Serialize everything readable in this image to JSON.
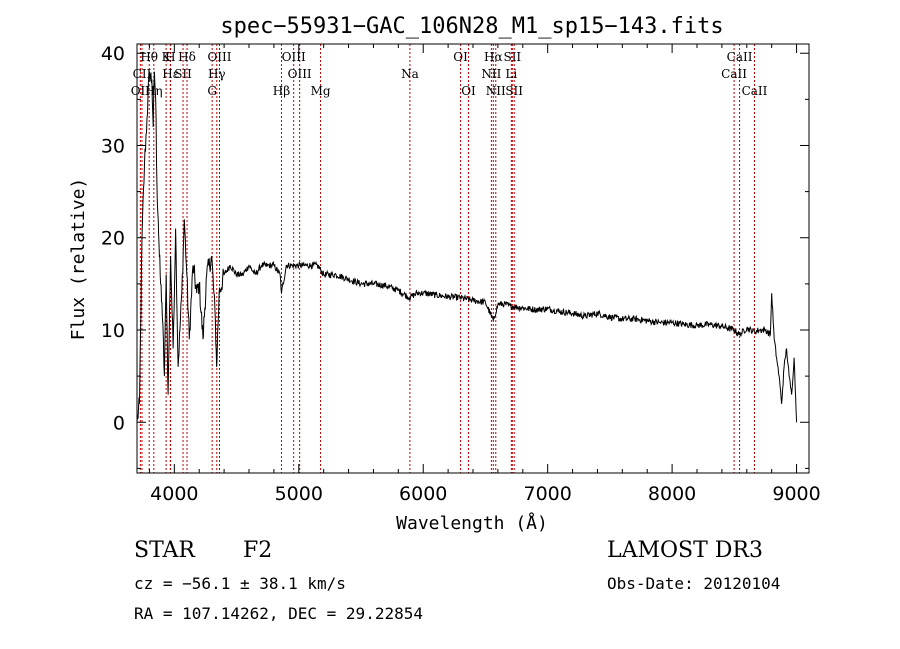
{
  "chart_data": {
    "type": "line",
    "title": "spec−55931−GAC_106N28_M1_sp15−143.fits",
    "xlabel": "Wavelength (Å)",
    "ylabel": "Flux (relative)",
    "xlim": [
      3700,
      9100
    ],
    "ylim": [
      -5.5,
      41
    ],
    "xticks": [
      4000,
      5000,
      6000,
      7000,
      8000,
      9000
    ],
    "xtick_labels": [
      "4000",
      "5000",
      "6000",
      "7000",
      "8000",
      "9000"
    ],
    "yticks": [
      0,
      10,
      20,
      30,
      40
    ],
    "ytick_labels": [
      "0",
      "10",
      "20",
      "30",
      "40"
    ],
    "grid": false,
    "series": [
      {
        "name": "flux",
        "x": [
          3700,
          3720,
          3740,
          3760,
          3780,
          3800,
          3820,
          3830,
          3840,
          3850,
          3860,
          3870,
          3880,
          3890,
          3900,
          3920,
          3935,
          3950,
          3970,
          3990,
          4010,
          4030,
          4060,
          4080,
          4100,
          4120,
          4150,
          4180,
          4200,
          4230,
          4260,
          4300,
          4330,
          4340,
          4360,
          4400,
          4450,
          4500,
          4550,
          4600,
          4650,
          4700,
          4750,
          4800,
          4850,
          4861,
          4900,
          4950,
          5000,
          5050,
          5100,
          5150,
          5200,
          5300,
          5400,
          5500,
          5600,
          5700,
          5800,
          5890,
          5950,
          6000,
          6100,
          6200,
          6300,
          6400,
          6500,
          6563,
          6600,
          6650,
          6700,
          6800,
          6900,
          7000,
          7100,
          7200,
          7300,
          7400,
          7500,
          7600,
          7700,
          7800,
          7900,
          8000,
          8100,
          8200,
          8300,
          8400,
          8500,
          8542,
          8600,
          8662,
          8700,
          8750,
          8790,
          8800,
          8820,
          8840,
          8860,
          8880,
          8900,
          8920,
          8940,
          8960,
          8980,
          9000
        ],
        "y": [
          0,
          2,
          20,
          28,
          33,
          38,
          37,
          32,
          38,
          35,
          26,
          22,
          18,
          15,
          13,
          5,
          16,
          3,
          18,
          8,
          21,
          6,
          14,
          22,
          16,
          9,
          17,
          14,
          15,
          9,
          16,
          18,
          11,
          6,
          14,
          16,
          17,
          16,
          16,
          17,
          16,
          17,
          17,
          17,
          16,
          14,
          17,
          17,
          17,
          17,
          17,
          17,
          16,
          16,
          15.5,
          15,
          15,
          14.8,
          14.3,
          13.5,
          14,
          14,
          13.8,
          13.6,
          13.5,
          13.2,
          13,
          11,
          12.8,
          12.8,
          12.6,
          12.4,
          12.2,
          12.3,
          12,
          11.8,
          11.5,
          11.8,
          11.4,
          11.2,
          11.2,
          11,
          10.8,
          10.8,
          10.6,
          10.5,
          10.6,
          10.4,
          10,
          9.5,
          10.2,
          9.8,
          10,
          10,
          9.5,
          14,
          9,
          7,
          5,
          2,
          6,
          8,
          5,
          3,
          7,
          0
        ]
      }
    ],
    "annotations": [
      {
        "label": "OII",
        "x": 3727,
        "row": 3
      },
      {
        "label": "Hθ",
        "x": 3798,
        "row": 1
      },
      {
        "label": "Hη",
        "x": 3835,
        "row": 3
      },
      {
        "label": "CII",
        "x": 3740,
        "row": 2
      },
      {
        "label": "K",
        "x": 3934,
        "row": 1
      },
      {
        "label": "H",
        "x": 3968,
        "row": 1
      },
      {
        "label": "Hε",
        "x": 3970,
        "row": 2
      },
      {
        "label": "SII",
        "x": 4070,
        "row": 2
      },
      {
        "label": "Hδ",
        "x": 4102,
        "row": 1
      },
      {
        "label": "OIII",
        "x": 4363,
        "row": 1
      },
      {
        "label": "Hγ",
        "x": 4341,
        "row": 2
      },
      {
        "label": "G",
        "x": 4304,
        "row": 3
      },
      {
        "label": "Hβ",
        "x": 4861,
        "row": 3
      },
      {
        "label": "OIII",
        "x": 4959,
        "row": 1
      },
      {
        "label": "OIII",
        "x": 5007,
        "row": 2
      },
      {
        "label": "Mg",
        "x": 5175,
        "row": 3
      },
      {
        "label": "Na",
        "x": 5893,
        "row": 2
      },
      {
        "label": "OI",
        "x": 6300,
        "row": 1
      },
      {
        "label": "OI",
        "x": 6364,
        "row": 3
      },
      {
        "label": "Hα",
        "x": 6563,
        "row": 1
      },
      {
        "label": "NII",
        "x": 6548,
        "row": 2
      },
      {
        "label": "NII",
        "x": 6583,
        "row": 3
      },
      {
        "label": "SII",
        "x": 6716,
        "row": 1
      },
      {
        "label": "Li",
        "x": 6708,
        "row": 2
      },
      {
        "label": "SII",
        "x": 6731,
        "row": 3
      },
      {
        "label": "CaII",
        "x": 8498,
        "row": 2
      },
      {
        "label": "CaII",
        "x": 8542,
        "row": 1
      },
      {
        "label": "CaII",
        "x": 8662,
        "row": 3
      }
    ]
  },
  "info": {
    "class": "STAR",
    "subclass": "F2",
    "survey": "LAMOST DR3",
    "cz": "cz = −56.1 ± 38.1 km/s",
    "obs_date": "Obs-Date: 20120104",
    "radec": "RA = 107.14262, DEC =  29.22854"
  },
  "colors": {
    "line": "#000000",
    "marker": "#c00000",
    "axis": "#000000",
    "background": "#ffffff"
  }
}
